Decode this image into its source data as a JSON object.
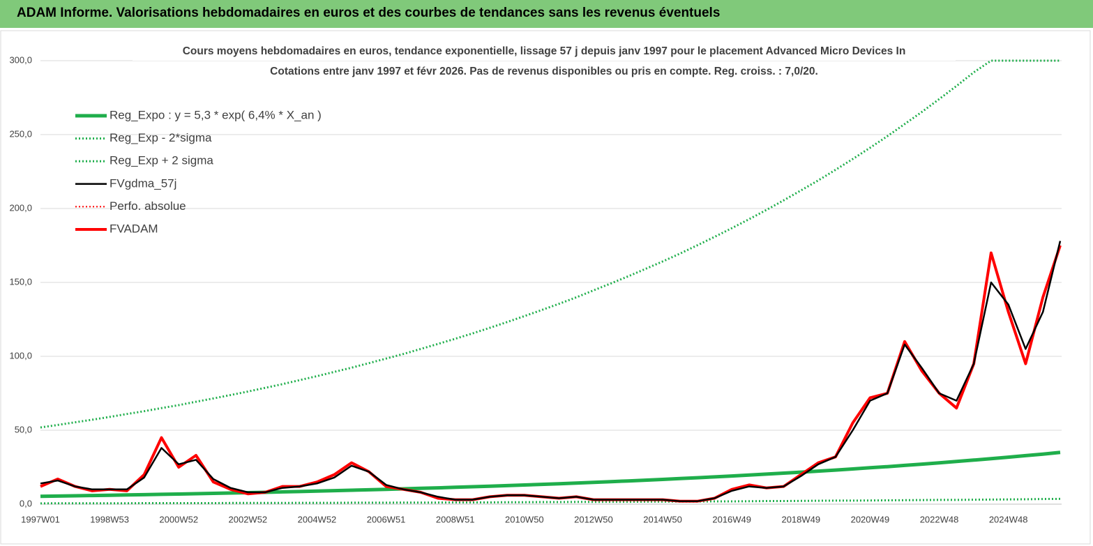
{
  "header": {
    "title": "ADAM Informe. Valorisations hebdomadaires en euros et des courbes de tendances sans les revenus éventuels"
  },
  "chart_data": {
    "type": "line",
    "title": [
      "Cours moyens hebdomadaires en euros, tendance exponentielle, lissage 57 j depuis janv 1997  pour le placement Advanced Micro Devices In",
      "Cotations entre janv 1997 et févr 2026. Pas de revenus disponibles ou pris en  compte. Reg. croiss. : 7,0/20."
    ],
    "categories": [
      "1997W01",
      null,
      null,
      null,
      "1998W53",
      null,
      null,
      null,
      "2000W52",
      null,
      null,
      null,
      "2002W52",
      null,
      null,
      null,
      "2004W52",
      null,
      null,
      null,
      "2006W51",
      null,
      null,
      null,
      "2008W51",
      null,
      null,
      null,
      "2010W50",
      null,
      null,
      null,
      "2012W50",
      null,
      null,
      null,
      "2014W50",
      null,
      null,
      null,
      "2016W49",
      null,
      null,
      null,
      "2018W49",
      null,
      null,
      null,
      "2020W49",
      null,
      null,
      null,
      "2022W48",
      null,
      null,
      null,
      "2024W48",
      null,
      null,
      null
    ],
    "ylim": [
      0,
      300
    ],
    "yticks": [
      {
        "value": 0,
        "label": "0,0"
      },
      {
        "value": 50,
        "label": "50,0"
      },
      {
        "value": 100,
        "label": "100,0"
      },
      {
        "value": 150,
        "label": "150,0"
      },
      {
        "value": 200,
        "label": "200,0"
      },
      {
        "value": 250,
        "label": "250,0"
      },
      {
        "value": 300,
        "label": "300,0"
      }
    ],
    "grid": true,
    "legend": "upper left",
    "series": [
      {
        "name": "Reg_Expo : y = 5,3 * exp( 6,4% *  X_an )",
        "color": "#1fae4b",
        "style": "solid",
        "width": 5,
        "values": [
          5.3,
          5.47,
          5.65,
          5.83,
          6.02,
          6.22,
          6.42,
          6.63,
          6.84,
          7.07,
          7.3,
          7.53,
          7.78,
          8.03,
          8.29,
          8.56,
          8.84,
          9.13,
          9.42,
          9.73,
          10.05,
          10.37,
          10.71,
          11.06,
          11.42,
          11.79,
          12.17,
          12.57,
          12.98,
          13.4,
          13.83,
          14.28,
          14.75,
          15.23,
          15.72,
          16.23,
          16.76,
          17.3,
          17.87,
          18.45,
          19.05,
          19.67,
          20.31,
          20.97,
          21.65,
          22.35,
          23.08,
          23.83,
          24.6,
          25.4,
          26.23,
          27.08,
          27.96,
          28.87,
          29.81,
          30.78,
          31.78,
          32.81,
          33.88,
          34.98
        ]
      },
      {
        "name": "Reg_Exp - 2*sigma",
        "color": "#1fae4b",
        "style": "dotted",
        "width": 3,
        "values": [
          0.5,
          0.6,
          0.6,
          0.6,
          0.6,
          0.6,
          0.7,
          0.7,
          0.7,
          0.7,
          0.7,
          0.8,
          0.8,
          0.8,
          0.8,
          0.9,
          0.9,
          0.9,
          1.0,
          1.0,
          1.0,
          1.1,
          1.1,
          1.1,
          1.2,
          1.2,
          1.2,
          1.3,
          1.3,
          1.4,
          1.4,
          1.5,
          1.5,
          1.6,
          1.6,
          1.7,
          1.7,
          1.8,
          1.8,
          1.9,
          1.9,
          2.0,
          2.1,
          2.1,
          2.2,
          2.3,
          2.4,
          2.4,
          2.5,
          2.6,
          2.7,
          2.8,
          2.9,
          2.9,
          3.0,
          3.1,
          3.2,
          3.3,
          3.5,
          3.6
        ]
      },
      {
        "name": "Reg_Exp + 2 sigma",
        "color": "#1fae4b",
        "style": "dotted",
        "width": 3,
        "values": [
          51.9,
          53.6,
          55.4,
          57.1,
          59.0,
          61.0,
          62.9,
          65.0,
          67.0,
          69.3,
          71.5,
          73.8,
          76.2,
          78.7,
          81.2,
          83.9,
          86.6,
          89.5,
          92.3,
          95.4,
          98.5,
          101.6,
          105.0,
          108.4,
          111.9,
          115.5,
          119.3,
          123.2,
          127.2,
          131.3,
          135.5,
          139.9,
          144.6,
          149.3,
          154.1,
          159.1,
          164.2,
          169.5,
          175.1,
          180.8,
          186.7,
          192.8,
          199.0,
          205.5,
          212.2,
          219.0,
          226.2,
          233.5,
          241.1,
          248.9,
          257.1,
          265.4,
          274.0,
          282.9,
          292.1,
          300,
          300,
          300,
          300,
          300
        ]
      },
      {
        "name": "FVgdma_57j",
        "color": "#000000",
        "style": "solid",
        "width": 2.5,
        "values": [
          14,
          16,
          12,
          10,
          10,
          10,
          18,
          38,
          27,
          30,
          17,
          11,
          8,
          8,
          11,
          12,
          14,
          18,
          26,
          22,
          13,
          10,
          8,
          5,
          3,
          3,
          5,
          6,
          6,
          5,
          4,
          5,
          3,
          3,
          3,
          3,
          3,
          2,
          2,
          4,
          9,
          12,
          11,
          12,
          19,
          27,
          32,
          50,
          70,
          75,
          108,
          92,
          75,
          70,
          95,
          150,
          135,
          105,
          130,
          178
        ]
      },
      {
        "name": "Perfo. absolue",
        "color": "#ff0000",
        "style": "dotted",
        "width": 2
      },
      {
        "name": "FVADAM",
        "color": "#ff0000",
        "style": "solid",
        "width": 4,
        "values": [
          12,
          17,
          12,
          9,
          10,
          9,
          20,
          45,
          25,
          33,
          15,
          10,
          7,
          8,
          12,
          12,
          15,
          20,
          28,
          22,
          12,
          10,
          8,
          4,
          3,
          3,
          5,
          6,
          6,
          5,
          4,
          5,
          3,
          3,
          3,
          3,
          3,
          2,
          2,
          4,
          10,
          13,
          11,
          12,
          20,
          28,
          32,
          55,
          72,
          75,
          110,
          90,
          75,
          65,
          95,
          170,
          130,
          95,
          140,
          175
        ]
      }
    ]
  }
}
